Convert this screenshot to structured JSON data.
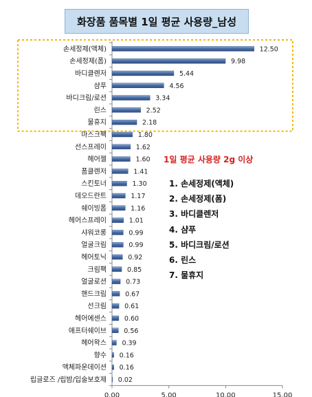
{
  "chart_data": {
    "type": "bar",
    "orientation": "horizontal",
    "title": "화장품 품목별 1일 평균 사용량_남성",
    "categories": [
      "손세정제(액체)",
      "손세정제(폼)",
      "바디클렌저",
      "샴푸",
      "바디크림/로션",
      "린스",
      "물휴지",
      "마스크팩",
      "선스프레이",
      "헤어젤",
      "폼클렌저",
      "스킨토너",
      "데오드란트",
      "쉐이빙폼",
      "헤어스프레이",
      "샤워코롱",
      "얼굴크림",
      "헤어토닉",
      "크림팩",
      "얼굴로션",
      "핸드크림",
      "선크림",
      "헤어에센스",
      "애프터쉐이브",
      "헤어왁스",
      "향수",
      "액체파운데이션",
      "립글로즈 /립밤/입술보호제"
    ],
    "values": [
      12.5,
      9.98,
      5.44,
      4.56,
      3.34,
      2.52,
      2.18,
      1.8,
      1.62,
      1.6,
      1.41,
      1.3,
      1.17,
      1.16,
      1.01,
      0.99,
      0.99,
      0.92,
      0.85,
      0.73,
      0.67,
      0.61,
      0.6,
      0.56,
      0.39,
      0.16,
      0.16,
      0.02
    ],
    "value_labels": [
      "12.50",
      "9.98",
      "5.44",
      "4.56",
      "3.34",
      "2.52",
      "2.18",
      "1.80",
      "1.62",
      "1.60",
      "1.41",
      "1.30",
      "1.17",
      "1.16",
      "1.01",
      "0.99",
      "0.99",
      "0.92",
      "0.85",
      "0.73",
      "0.67",
      "0.61",
      "0.60",
      "0.56",
      "0.39",
      "0.16",
      "0.16",
      "0.02"
    ],
    "xlim": [
      0,
      15
    ],
    "xticks": [
      0,
      5,
      10,
      15
    ],
    "xtick_labels": [
      "0.00",
      "5.00",
      "10.00",
      "15.00"
    ],
    "highlighted_count": 7,
    "bar_color": "#4a6fa5",
    "highlight_border_color": "#f0b800"
  },
  "annotation": {
    "title": "1일 평균 사용량  2g 이상",
    "items": [
      "1. 손세정제(액체)",
      "2. 손세정제(폼)",
      "3. 바디클렌저",
      "4. 샴푸",
      "5. 바디크림/로션",
      "6. 린스",
      "7. 물휴지"
    ],
    "title_color": "#d42020"
  }
}
